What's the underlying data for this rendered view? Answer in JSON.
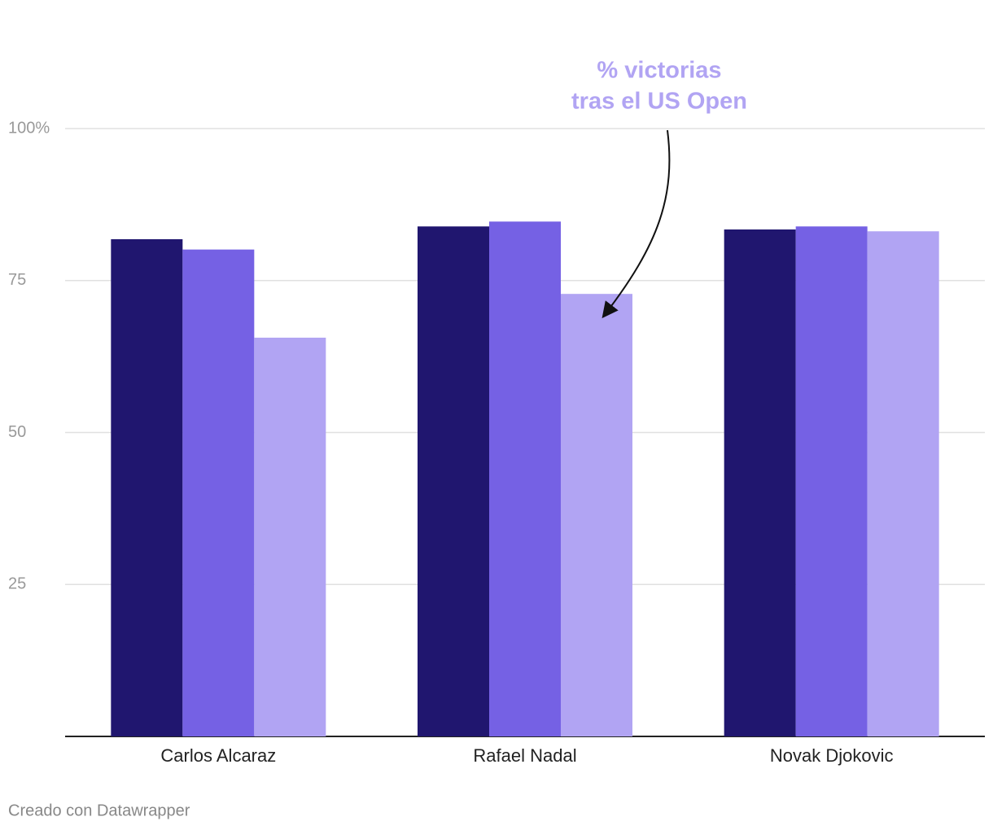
{
  "chart_data": {
    "type": "grouped_bar",
    "categories": [
      "Carlos Alcaraz",
      "Rafael Nadal",
      "Novak Djokovic"
    ],
    "series": [
      {
        "color": "#20166f",
        "values": [
          81.8,
          83.9,
          83.4
        ]
      },
      {
        "color": "#7561e4",
        "values": [
          80.1,
          84.7,
          83.9
        ]
      },
      {
        "color": "#b1a4f3",
        "values": [
          65.6,
          72.8,
          83.1
        ]
      }
    ],
    "ylim": [
      0,
      100
    ],
    "yticks": [
      25,
      50,
      75,
      {
        "value": 100,
        "label": "100%"
      }
    ],
    "grid": true,
    "annotation": [
      "% victorias",
      "tras el US Open"
    ],
    "footer": "Creado con Datawrapper"
  }
}
